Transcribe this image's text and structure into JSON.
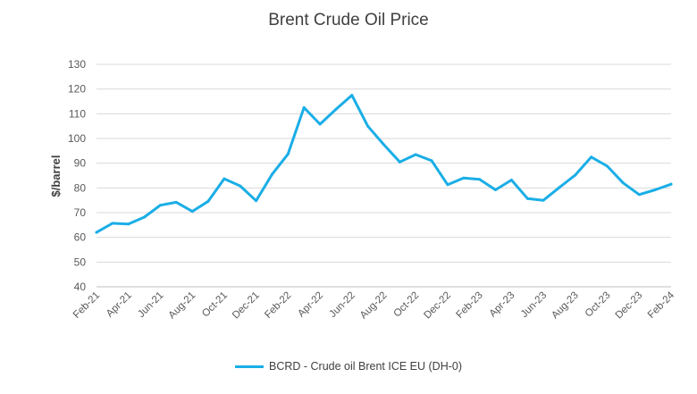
{
  "chart_data": {
    "type": "line",
    "title": "Brent Crude Oil Price",
    "xlabel": "",
    "ylabel": "$/barrel",
    "ylim": [
      40,
      130
    ],
    "yticks": [
      40,
      50,
      60,
      70,
      80,
      90,
      100,
      110,
      120,
      130
    ],
    "grid": true,
    "legend_position": "bottom",
    "tick_labels": [
      "Feb-21",
      "Apr-21",
      "Jun-21",
      "Aug-21",
      "Oct-21",
      "Dec-21",
      "Feb-22",
      "Apr-22",
      "Jun-22",
      "Aug-22",
      "Oct-22",
      "Dec-22",
      "Feb-23",
      "Apr-23",
      "Jun-23",
      "Aug-23",
      "Oct-23",
      "Dec-23",
      "Feb-24"
    ],
    "x": [
      "Feb-21",
      "Mar-21",
      "Apr-21",
      "May-21",
      "Jun-21",
      "Jul-21",
      "Aug-21",
      "Sep-21",
      "Oct-21",
      "Nov-21",
      "Dec-21",
      "Jan-22",
      "Feb-22",
      "Mar-22",
      "Apr-22",
      "May-22",
      "Jun-22",
      "Jul-22",
      "Aug-22",
      "Sep-22",
      "Oct-22",
      "Nov-22",
      "Dec-22",
      "Jan-23",
      "Feb-23",
      "Mar-23",
      "Apr-23",
      "May-23",
      "Jun-23",
      "Jul-23",
      "Aug-23",
      "Sep-23",
      "Oct-23",
      "Nov-23",
      "Dec-23",
      "Jan-24",
      "Feb-24"
    ],
    "series": [
      {
        "name": "BCRD - Crude oil Brent ICE EU (DH-0)",
        "color": "#1aaee6",
        "values": [
          62,
          65.7,
          65.4,
          68.2,
          73,
          74.2,
          70.5,
          74.6,
          83.7,
          80.8,
          74.8,
          85.5,
          93.7,
          112.5,
          105.8,
          111.8,
          117.5,
          105,
          97.5,
          90.5,
          93.5,
          91,
          81.3,
          84,
          83.5,
          79.2,
          83.2,
          75.7,
          75,
          80.2,
          85.2,
          92.5,
          88.8,
          82,
          77.3,
          79.2,
          81.5
        ]
      }
    ]
  }
}
